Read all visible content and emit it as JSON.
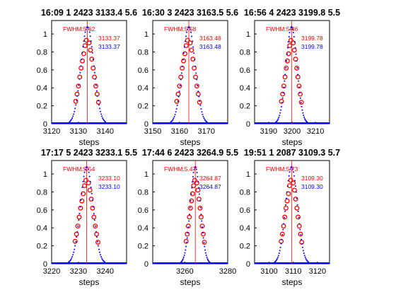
{
  "colors": {
    "peak_line": "#ff0000",
    "scan_dots": "#0000ff",
    "scan_circles": "#ff0000",
    "axes": "#000000"
  },
  "chart_data": [
    {
      "type": "scatter",
      "title": "16:09   1 2423 3133.4   5.6",
      "xlabel": "steps",
      "ylabel": "",
      "xlim": [
        3120,
        3148
      ],
      "ylim": [
        0,
        1.15
      ],
      "xticks": [
        3120,
        3130,
        3140
      ],
      "yticks": [
        0,
        0.2,
        0.4,
        0.6,
        0.8,
        1
      ],
      "grid": false,
      "peak": 3133.37,
      "fwhm_label": "FWHM:5.62",
      "center_label_red": "3133.37",
      "center_label_blue": "3133.37",
      "scan_circles": {
        "x": [
          3129.0,
          3129.5,
          3130.0,
          3130.5,
          3131.0,
          3131.5,
          3132.0,
          3132.5,
          3133.0,
          3134.0,
          3134.5,
          3135.0,
          3135.5,
          3136.0,
          3136.5,
          3137.0,
          3137.5
        ],
        "y": [
          0.25,
          0.33,
          0.42,
          0.52,
          0.62,
          0.7,
          0.78,
          0.87,
          0.93,
          0.9,
          0.82,
          0.72,
          0.62,
          0.52,
          0.42,
          0.33,
          0.24
        ]
      }
    },
    {
      "type": "scatter",
      "title": "16:30   3 2423 3163.5   5.6",
      "xlabel": "steps",
      "ylabel": "",
      "xlim": [
        3150,
        3178
      ],
      "ylim": [
        0,
        1.15
      ],
      "xticks": [
        3150,
        3160,
        3170
      ],
      "yticks": [
        0,
        0.2,
        0.4,
        0.6,
        0.8,
        1
      ],
      "grid": false,
      "peak": 3163.48,
      "fwhm_label": "FWHM:5.58",
      "center_label_red": "3163.48",
      "center_label_blue": "3163.48",
      "scan_circles": {
        "x": [
          3159.0,
          3159.5,
          3160.0,
          3160.5,
          3161.0,
          3161.5,
          3162.0,
          3162.5,
          3163.0,
          3164.0,
          3164.5,
          3165.0,
          3165.5,
          3166.0,
          3166.5,
          3167.0,
          3167.5
        ],
        "y": [
          0.25,
          0.33,
          0.42,
          0.52,
          0.62,
          0.7,
          0.78,
          0.87,
          0.93,
          0.9,
          0.82,
          0.72,
          0.62,
          0.52,
          0.42,
          0.33,
          0.24
        ]
      }
    },
    {
      "type": "scatter",
      "title": "16:56   4 2423 3199.8   5.5",
      "xlabel": "steps",
      "ylabel": "",
      "xlim": [
        3184,
        3216
      ],
      "ylim": [
        0,
        1.15
      ],
      "xticks": [
        3190,
        3200,
        3210
      ],
      "yticks": [
        0,
        0.2,
        0.4,
        0.6,
        0.8,
        1
      ],
      "grid": false,
      "peak": 3199.78,
      "fwhm_label": "FWHM:5.46",
      "center_label_red": "3199.78",
      "center_label_blue": "3199.78",
      "scan_circles": {
        "x": [
          3195.5,
          3196.0,
          3196.5,
          3197.0,
          3197.5,
          3198.0,
          3198.5,
          3199.0,
          3199.5,
          3200.5,
          3201.0,
          3201.5,
          3202.0,
          3202.5,
          3203.0,
          3203.5,
          3204.0
        ],
        "y": [
          0.25,
          0.33,
          0.42,
          0.52,
          0.62,
          0.7,
          0.78,
          0.87,
          0.93,
          0.9,
          0.82,
          0.72,
          0.62,
          0.52,
          0.42,
          0.33,
          0.24
        ]
      }
    },
    {
      "type": "scatter",
      "title": "17:17   5 2423 3233.1   5.5",
      "xlabel": "steps",
      "ylabel": "",
      "xlim": [
        3220,
        3248
      ],
      "ylim": [
        0,
        1.15
      ],
      "xticks": [
        3220,
        3230,
        3240
      ],
      "yticks": [
        0,
        0.2,
        0.4,
        0.6,
        0.8,
        1
      ],
      "grid": false,
      "peak": 3233.1,
      "fwhm_label": "FWHM:5.54",
      "center_label_red": "3233.10",
      "center_label_blue": "3233.10",
      "scan_circles": {
        "x": [
          3228.8,
          3229.3,
          3229.8,
          3230.3,
          3230.8,
          3231.3,
          3231.8,
          3232.3,
          3232.8,
          3233.8,
          3234.3,
          3234.8,
          3235.3,
          3235.8,
          3236.3,
          3236.8,
          3237.3
        ],
        "y": [
          0.25,
          0.33,
          0.42,
          0.52,
          0.62,
          0.7,
          0.78,
          0.87,
          0.93,
          0.9,
          0.82,
          0.72,
          0.62,
          0.52,
          0.42,
          0.33,
          0.24
        ]
      }
    },
    {
      "type": "scatter",
      "title": "17:44   6 2423 3264.9   5.5",
      "xlabel": "steps",
      "ylabel": "",
      "xlim": [
        3245,
        3280
      ],
      "ylim": [
        0,
        1.15
      ],
      "xticks": [
        3260,
        3280
      ],
      "yticks": [
        0,
        0.2,
        0.4,
        0.6,
        0.8,
        1
      ],
      "grid": false,
      "peak": 3264.87,
      "fwhm_label": "FWHM:5.47",
      "center_label_red": "3264.87",
      "center_label_blue": "3264.87",
      "scan_circles": {
        "x": [
          3260.6,
          3261.1,
          3261.6,
          3262.1,
          3262.6,
          3263.1,
          3263.6,
          3264.1,
          3264.6,
          3265.6,
          3266.1,
          3266.6,
          3267.1,
          3267.6,
          3268.1,
          3268.6,
          3269.1
        ],
        "y": [
          0.25,
          0.33,
          0.42,
          0.52,
          0.62,
          0.7,
          0.78,
          0.87,
          0.93,
          0.9,
          0.82,
          0.72,
          0.62,
          0.52,
          0.42,
          0.33,
          0.24
        ]
      }
    },
    {
      "type": "scatter",
      "title": "19:51   1 2087 3109.3   5.7",
      "xlabel": "steps",
      "ylabel": "",
      "xlim": [
        3094,
        3125
      ],
      "ylim": [
        0,
        1.15
      ],
      "xticks": [
        3100,
        3110,
        3120
      ],
      "yticks": [
        0,
        0.2,
        0.4,
        0.6,
        0.8,
        1
      ],
      "grid": false,
      "peak": 3109.3,
      "fwhm_label": "FWHM:5.73",
      "center_label_red": "3109.30",
      "center_label_blue": "3109.30",
      "scan_circles": {
        "x": [
          3105.0,
          3105.5,
          3106.0,
          3106.5,
          3107.0,
          3107.5,
          3108.0,
          3108.5,
          3109.0,
          3110.0,
          3110.5,
          3111.0,
          3111.5,
          3112.0,
          3112.5,
          3113.0,
          3113.5
        ],
        "y": [
          0.25,
          0.33,
          0.42,
          0.52,
          0.62,
          0.7,
          0.78,
          0.87,
          0.93,
          0.9,
          0.82,
          0.72,
          0.62,
          0.52,
          0.42,
          0.33,
          0.24
        ]
      }
    }
  ]
}
